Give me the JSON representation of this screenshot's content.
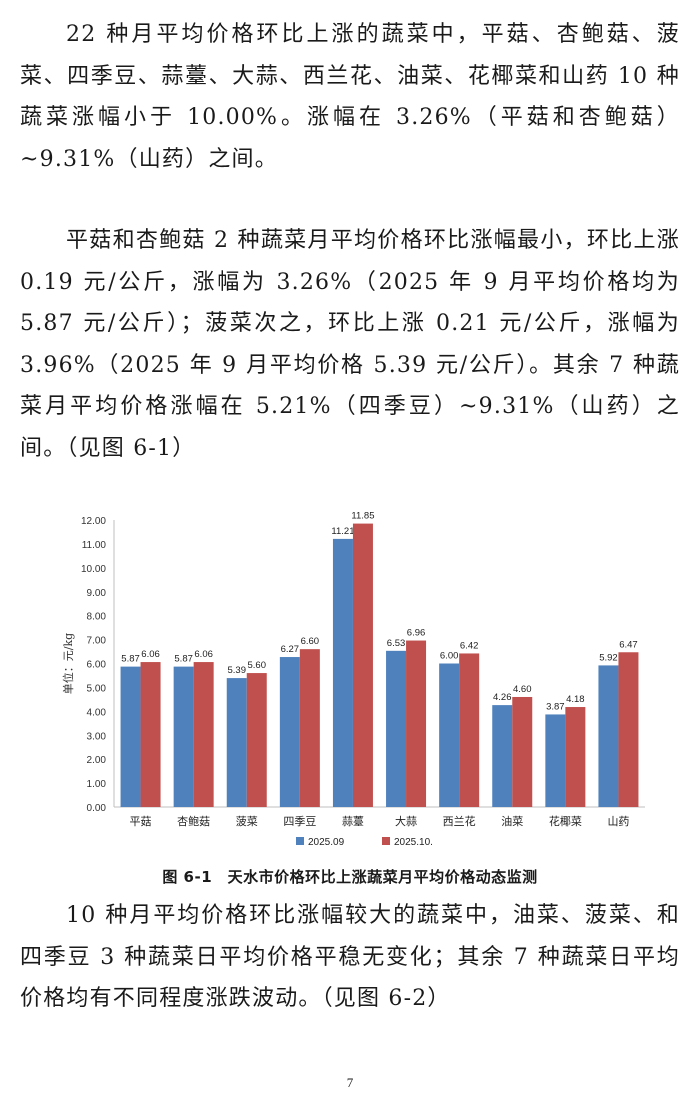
{
  "paragraphs": [
    "22 种月平均价格环比上涨的蔬菜中，平菇、杏鲍菇、菠菜、四季豆、蒜薹、大蒜、西兰花、油菜、花椰菜和山药 10 种蔬菜涨幅小于 10.00%。涨幅在 3.26%（平菇和杏鲍菇）~9.31%（山药）之间。",
    "平菇和杏鲍菇 2 种蔬菜月平均价格环比涨幅最小，环比上涨 0.19 元/公斤，涨幅为 3.26%（2025 年 9 月平均价格均为 5.87 元/公斤）；菠菜次之，环比上涨 0.21 元/公斤，涨幅为 3.96%（2025 年 9 月平均价格 5.39 元/公斤）。其余 7 种蔬菜月平均价格涨幅在 5.21%（四季豆）~9.31%（山药）之间。（见图 6-1）",
    "10 种月平均价格环比涨幅较大的蔬菜中，油菜、菠菜、和四季豆 3 种蔬菜日平均价格平稳无变化；其余 7 种蔬菜日平均价格均有不同程度涨跌波动。（见图 6-2）"
  ],
  "chart_data": {
    "type": "bar",
    "categories": [
      "平菇",
      "杏鲍菇",
      "菠菜",
      "四季豆",
      "蒜薹",
      "大蒜",
      "西兰花",
      "油菜",
      "花椰菜",
      "山药"
    ],
    "series": [
      {
        "name": "2025.09",
        "color": "#4f81bd",
        "values": [
          5.87,
          5.87,
          5.39,
          6.27,
          11.21,
          6.53,
          6.0,
          4.26,
          3.87,
          5.92
        ]
      },
      {
        "name": "2025.10.",
        "color": "#c0504d",
        "values": [
          6.06,
          6.06,
          5.6,
          6.6,
          11.85,
          6.96,
          6.42,
          4.6,
          4.18,
          6.47
        ]
      }
    ],
    "value_labels": [
      [
        "5.87",
        "5.87",
        "5.39",
        "6.27",
        "11.21",
        "6.53",
        "6.00",
        "4.26",
        "3.87",
        "5.92"
      ],
      [
        "6.06",
        "6.06",
        "5.60",
        "6.60",
        "11.85",
        "6.96",
        "6.42",
        "4.60",
        "4.18",
        "6.47"
      ]
    ],
    "ylabel": "单位：元/kg",
    "ylim": [
      0,
      12
    ],
    "yticks": [
      "0.00",
      "1.00",
      "2.00",
      "3.00",
      "4.00",
      "5.00",
      "6.00",
      "7.00",
      "8.00",
      "9.00",
      "10.00",
      "11.00",
      "12.00"
    ],
    "legend_position": "bottom",
    "grid": false
  },
  "caption": "图 6-1　天水市价格环比上涨蔬菜月平均价格动态监测",
  "page_number": "7"
}
